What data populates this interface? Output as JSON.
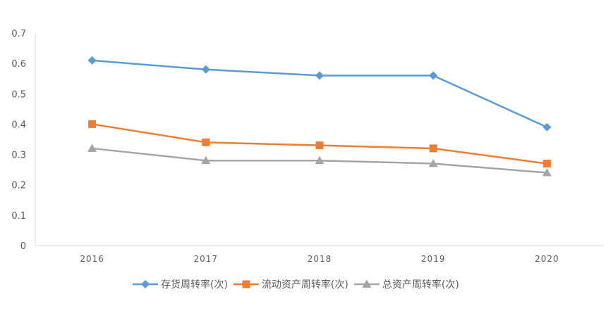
{
  "chart_data": {
    "type": "line",
    "categories": [
      "2016",
      "2017",
      "2018",
      "2019",
      "2020"
    ],
    "ylim": [
      0,
      0.7
    ],
    "yticks": [
      "0",
      "0.1",
      "0.2",
      "0.3",
      "0.4",
      "0.5",
      "0.6",
      "0.7"
    ],
    "grid": false,
    "legend_position": "bottom",
    "series": [
      {
        "name": "存货周转率(次)",
        "values": [
          0.61,
          0.58,
          0.56,
          0.56,
          0.39
        ],
        "color": "#5B9BD5",
        "marker": "diamond"
      },
      {
        "name": "流动资产周转率(次)",
        "values": [
          0.4,
          0.34,
          0.33,
          0.32,
          0.27
        ],
        "color": "#ED7D31",
        "marker": "square"
      },
      {
        "name": "总资产周转率(次)",
        "values": [
          0.32,
          0.28,
          0.28,
          0.27,
          0.24
        ],
        "color": "#A5A5A5",
        "marker": "triangle"
      }
    ]
  }
}
